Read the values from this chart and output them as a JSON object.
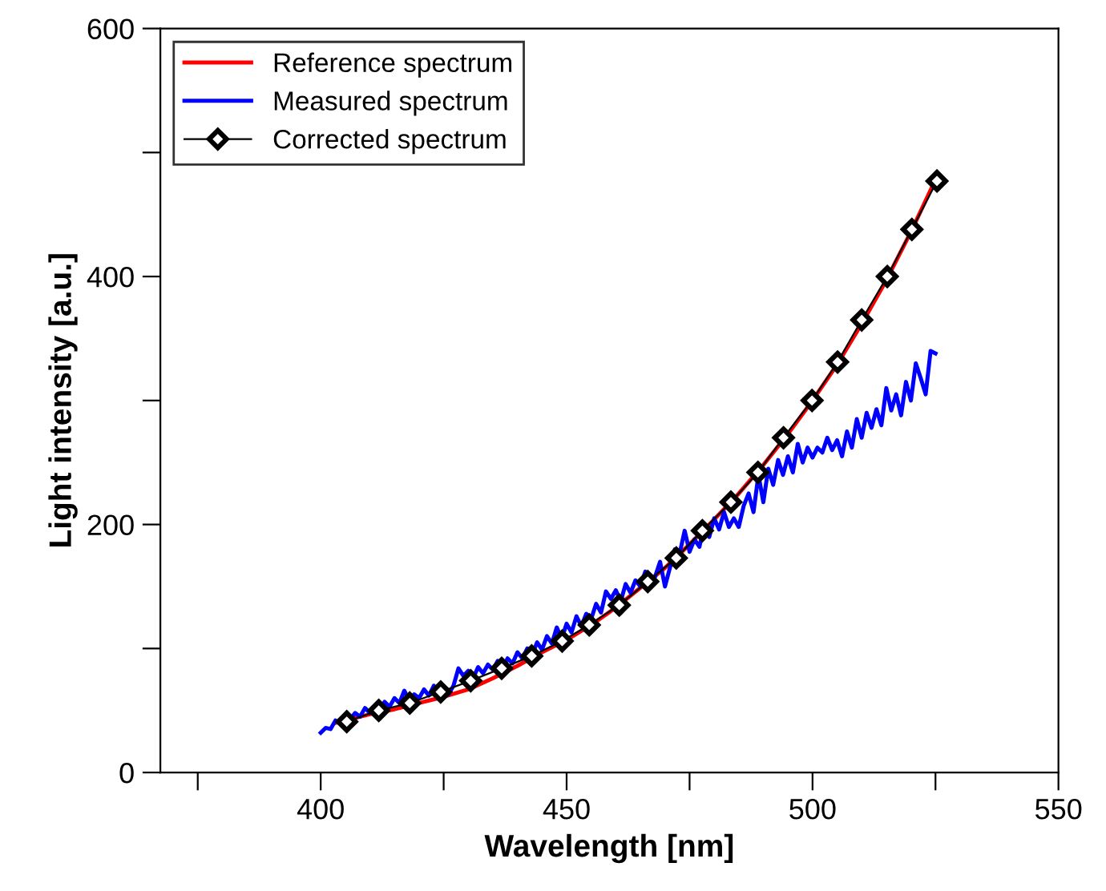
{
  "chart_data": {
    "type": "line",
    "xlabel": "Wavelength [nm]",
    "ylabel": "Light intensity [a.u.]",
    "xlim": [
      367.4,
      550
    ],
    "ylim": [
      0,
      600
    ],
    "xticks": [
      {
        "value": 375,
        "label": null
      },
      400,
      {
        "value": 425,
        "label": null
      },
      450,
      {
        "value": 475,
        "label": null
      },
      500,
      {
        "value": 525,
        "label": null
      },
      550
    ],
    "yticks": [
      0,
      {
        "value": 100,
        "label": null
      },
      200,
      {
        "value": 300,
        "label": null
      },
      400,
      {
        "value": 500,
        "label": null
      },
      600
    ],
    "grid": false,
    "legend": "top left",
    "series": [
      {
        "name": "Reference spectrum",
        "color": "#ff0000",
        "marker": "none",
        "x": [
          403,
          410,
          415,
          420,
          425,
          430,
          435,
          440,
          445,
          450,
          455,
          460,
          465,
          470,
          475,
          480,
          485,
          490,
          495,
          500,
          505,
          510,
          515,
          520,
          525
        ],
        "values": [
          40,
          47,
          51,
          56,
          61,
          67,
          76,
          86,
          97,
          107,
          119,
          133,
          149,
          165,
          184,
          204,
          225,
          248,
          273,
          300,
          329,
          362,
          397,
          436,
          478
        ]
      },
      {
        "name": "Measured spectrum",
        "color": "#0000ff",
        "marker": "none",
        "x": [
          400,
          401,
          402,
          403,
          404,
          405,
          406,
          407,
          408,
          409,
          410,
          411,
          412,
          413,
          414,
          415,
          416,
          417,
          418,
          419,
          420,
          421,
          422,
          423,
          424,
          425,
          426,
          427,
          428,
          429,
          430,
          431,
          432,
          433,
          434,
          435,
          436,
          437,
          438,
          439,
          440,
          441,
          442,
          443,
          444,
          445,
          446,
          447,
          448,
          449,
          450,
          451,
          452,
          453,
          454,
          455,
          456,
          457,
          458,
          459,
          460,
          461,
          462,
          463,
          464,
          465,
          466,
          467,
          468,
          469,
          470,
          471,
          472,
          473,
          474,
          475,
          476,
          477,
          478,
          479,
          480,
          481,
          482,
          483,
          484,
          485,
          486,
          487,
          488,
          489,
          490,
          491,
          492,
          493,
          494,
          495,
          496,
          497,
          498,
          499,
          500,
          501,
          502,
          503,
          504,
          505,
          506,
          507,
          508,
          509,
          510,
          511,
          512,
          513,
          514,
          515,
          516,
          517,
          518,
          519,
          520,
          521,
          522,
          523,
          524,
          525
        ],
        "values": [
          32,
          36,
          35,
          42,
          40,
          46,
          43,
          48,
          45,
          52,
          48,
          54,
          51,
          57,
          53,
          60,
          56,
          66,
          58,
          63,
          60,
          67,
          62,
          70,
          64,
          68,
          63,
          70,
          84,
          78,
          82,
          76,
          85,
          80,
          87,
          83,
          90,
          84,
          92,
          88,
          97,
          92,
          100,
          95,
          105,
          99,
          110,
          104,
          117,
          108,
          120,
          113,
          126,
          118,
          128,
          124,
          136,
          129,
          146,
          140,
          147,
          138,
          152,
          145,
          155,
          150,
          162,
          152,
          158,
          170,
          150,
          165,
          180,
          177,
          195,
          178,
          188,
          182,
          200,
          190,
          205,
          196,
          210,
          198,
          205,
          198,
          215,
          225,
          210,
          240,
          218,
          245,
          232,
          252,
          240,
          255,
          242,
          265,
          250,
          262,
          254,
          262,
          258,
          270,
          260,
          268,
          255,
          275,
          262,
          285,
          270,
          290,
          278,
          293,
          280,
          310,
          292,
          305,
          288,
          315,
          300,
          330,
          318,
          305,
          340,
          338
        ]
      },
      {
        "name": "Corrected spectrum",
        "color": "#000000",
        "marker": "diamond",
        "x": [
          405.3,
          411.8,
          418.1,
          424.4,
          430.5,
          436.8,
          442.9,
          449.1,
          454.6,
          460.7,
          466.5,
          472.3,
          477.6,
          483.4,
          488.9,
          494.1,
          499.9,
          505.1,
          510.0,
          515.2,
          520.2,
          525.3
        ],
        "values": [
          41,
          50,
          56,
          65,
          74,
          84,
          94,
          106,
          119,
          135,
          154,
          173,
          195,
          218,
          242,
          270,
          300,
          331,
          365,
          400,
          438,
          477
        ]
      }
    ]
  }
}
